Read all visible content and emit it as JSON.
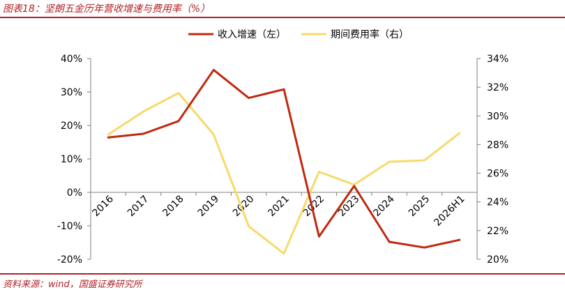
{
  "header": {
    "title": "图表18：坚朗五金历年营收增速与费用率（%）"
  },
  "footer": {
    "source": "资料来源：wind，国盛证券研究所"
  },
  "chart_data": {
    "type": "line",
    "categories": [
      "2016",
      "2017",
      "2018",
      "2019",
      "2020",
      "2021",
      "2022",
      "2023",
      "2024",
      "2025",
      "2026H1"
    ],
    "series": [
      {
        "name": "收入增速（左）",
        "axis": "left",
        "color": "#c0280f",
        "values": [
          16.4,
          17.5,
          21.3,
          36.6,
          28.2,
          30.8,
          -13.2,
          1.9,
          -14.8,
          -16.5,
          -14.2
        ]
      },
      {
        "name": "期间费用率（右）",
        "axis": "right",
        "color": "#f8d96a",
        "values": [
          28.7,
          30.3,
          31.6,
          28.7,
          22.3,
          20.4,
          26.1,
          25.2,
          26.8,
          26.9,
          28.8
        ]
      }
    ],
    "y_left": {
      "min": -20,
      "max": 40,
      "step": 10,
      "ticks": [
        "-20%",
        "-10%",
        "0%",
        "10%",
        "20%",
        "30%",
        "40%"
      ]
    },
    "y_right": {
      "min": 20,
      "max": 34,
      "step": 2,
      "ticks": [
        "20%",
        "22%",
        "24%",
        "26%",
        "28%",
        "30%",
        "32%",
        "34%"
      ]
    },
    "legend": {
      "position": "top-center"
    },
    "grid": false
  }
}
